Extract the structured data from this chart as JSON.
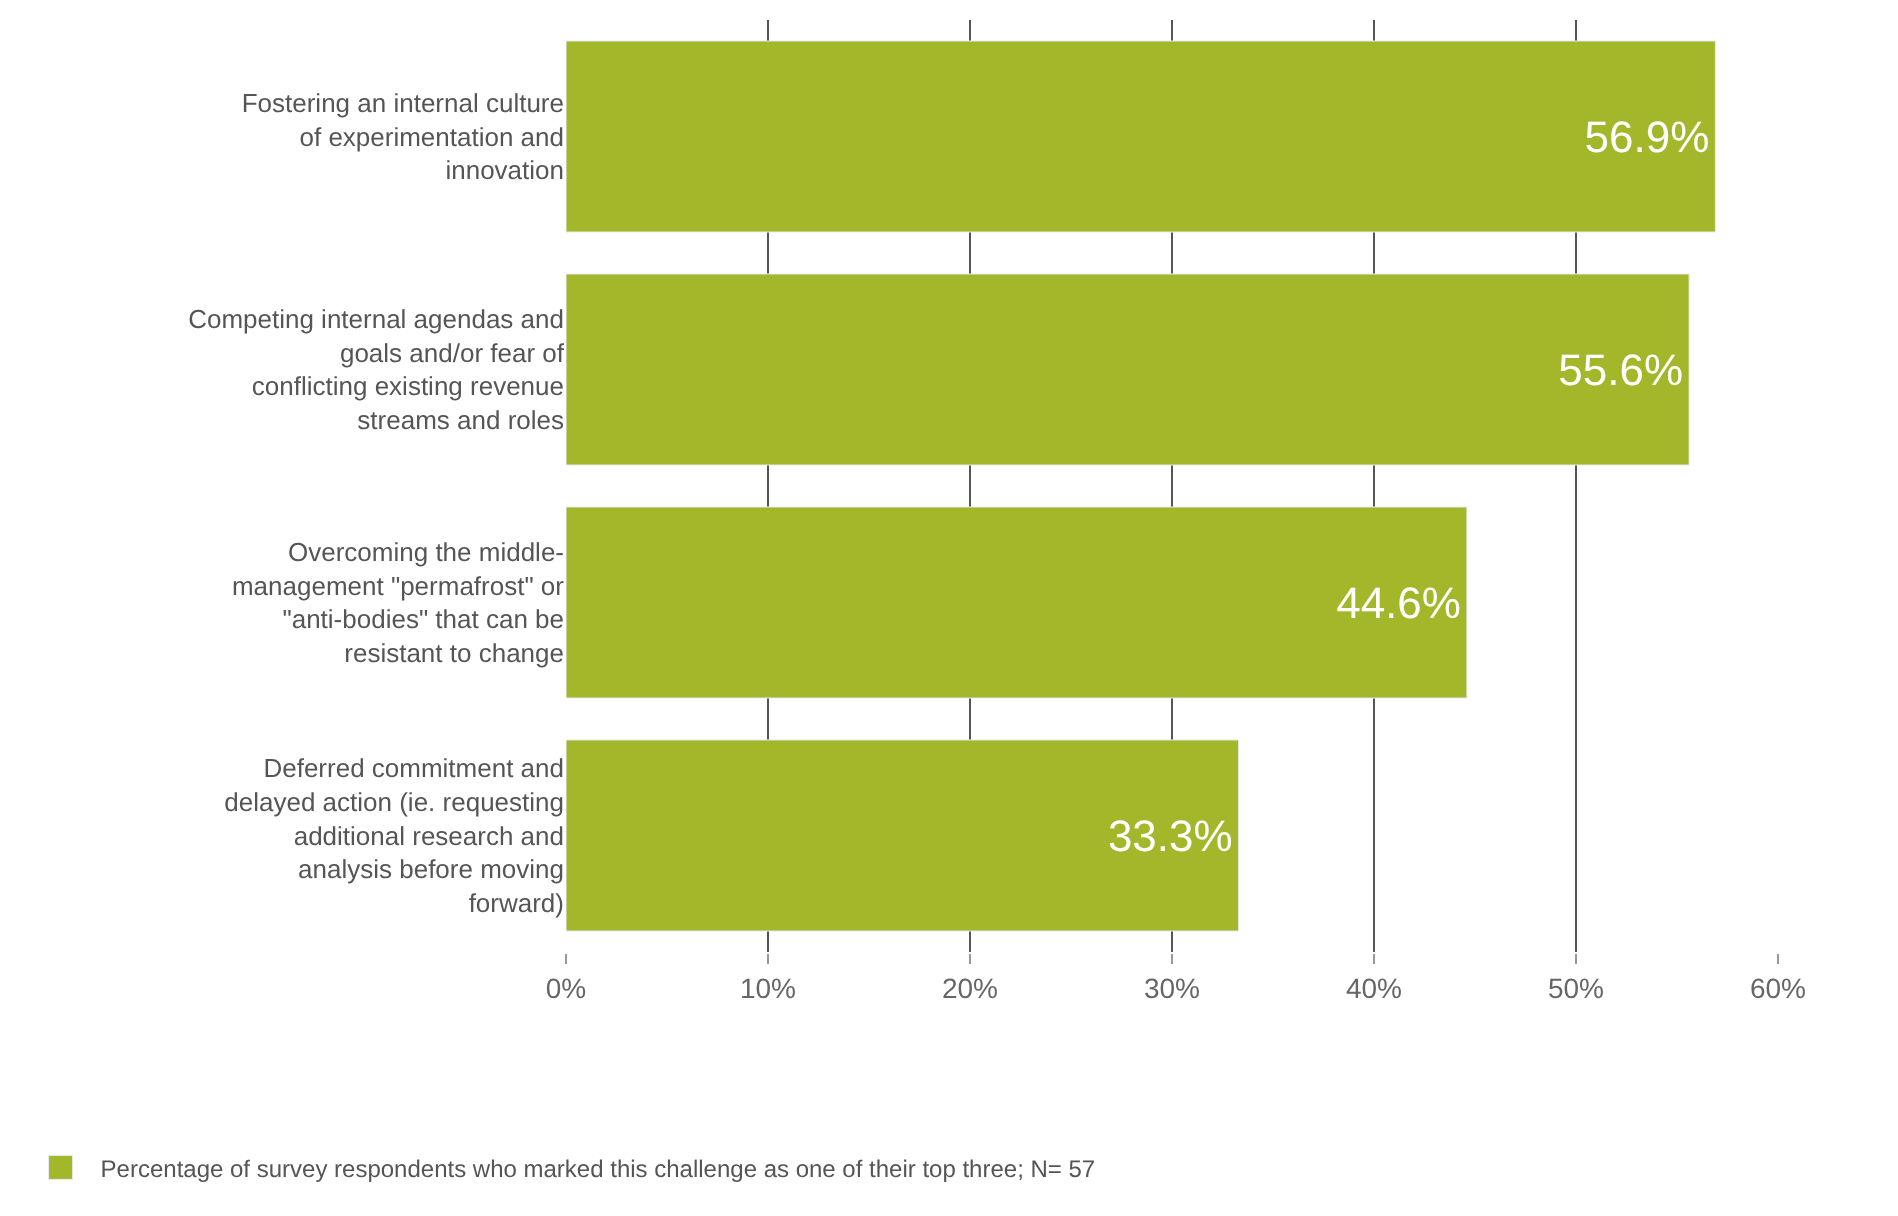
{
  "chart_data": {
    "type": "bar",
    "orientation": "horizontal",
    "categories": [
      "Fostering an internal culture of experimentation and innovation",
      "Competing internal agendas and goals and/or fear of conflicting existing revenue streams and roles",
      "Overcoming the middle-management \"permafrost\" or \"anti-bodies\" that can be resistant to change",
      "Deferred commitment and delayed action (ie. requesting additional research and analysis before moving forward)"
    ],
    "series": [
      {
        "name": "Percentage of survey respondents who marked this challenge as one of their top three; N= 57",
        "color": "#a4b72a",
        "values": [
          56.9,
          55.6,
          44.6,
          33.3
        ],
        "value_labels": [
          "56.9%",
          "55.6%",
          "44.6%",
          "33.3%"
        ]
      }
    ],
    "xlim": [
      0,
      60
    ],
    "xticks": [
      {
        "value": 0,
        "label": "0%"
      },
      {
        "value": 10,
        "label": "10%"
      },
      {
        "value": 20,
        "label": "20%"
      },
      {
        "value": 30,
        "label": "30%"
      },
      {
        "value": 40,
        "label": "40%"
      },
      {
        "value": 50,
        "label": "50%"
      },
      {
        "value": 60,
        "label": "60%"
      }
    ],
    "grid": "x",
    "legend": "bottom"
  }
}
